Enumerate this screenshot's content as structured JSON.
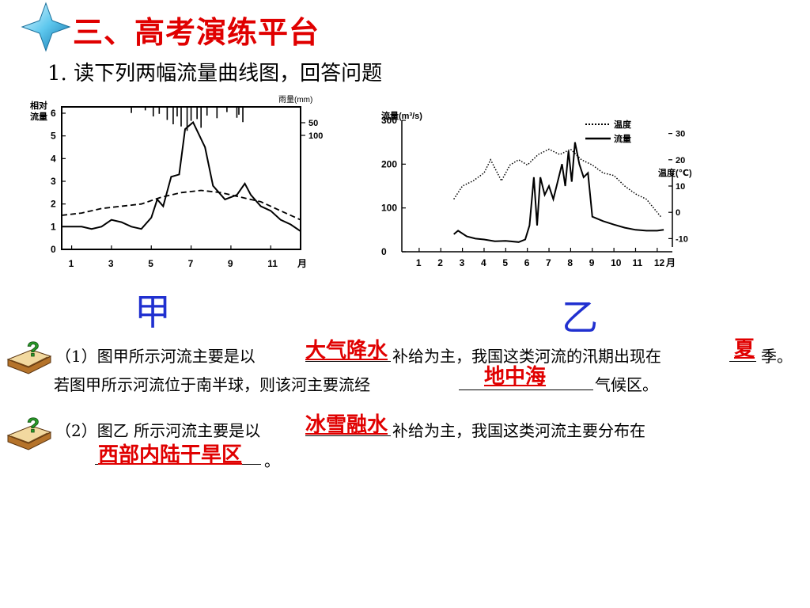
{
  "header": {
    "title": "三、高考演练平台",
    "subtitle": "1. 读下列两幅流量曲线图，回答问题"
  },
  "chart_labels": {
    "a": "甲",
    "b": "乙"
  },
  "questions": {
    "q1_line1_pre": "（1）图甲所示河流主要是以",
    "q1_line1_mid": "补给为主，我国这类河流的汛期出现在",
    "q1_line1_post": "季。",
    "q1_line2_pre": "若图甲所示河流位于南半球，则该河主要流经",
    "q1_line2_post": "气候区。",
    "q2_line1_pre": "（2）图乙 所示河流主要是以",
    "q2_line1_mid": "补给为主，我国这类河流主要分布在",
    "q2_line2_post": "。"
  },
  "answers": {
    "a1": "大气降水",
    "a2": "夏",
    "a3": "地中海",
    "a4": "冰雪融水",
    "a5": "西部内陆干旱区"
  },
  "colors": {
    "title": "#e00000",
    "answer": "#e00000",
    "chart_label": "#2030d0"
  },
  "chart_data": [
    {
      "type": "line",
      "ylabel": "相对流量",
      "y2label": "雨量(mm)",
      "x_unit": "月",
      "xticks": [
        "1",
        "3",
        "5",
        "7",
        "9",
        "11"
      ],
      "yticks": [
        "0",
        "1",
        "2",
        "3",
        "4",
        "5",
        "6"
      ],
      "y2ticks": [
        "50",
        "100"
      ],
      "ylim": [
        0,
        6
      ],
      "xlim": [
        0,
        12
      ],
      "series": [
        {
          "style": "solid",
          "points": [
            [
              0,
              1.0
            ],
            [
              1,
              1.0
            ],
            [
              1.5,
              0.9
            ],
            [
              2,
              1.0
            ],
            [
              2.5,
              1.3
            ],
            [
              3,
              1.2
            ],
            [
              3.5,
              1.0
            ],
            [
              4,
              0.9
            ],
            [
              4.5,
              1.4
            ],
            [
              4.8,
              2.2
            ],
            [
              5.1,
              1.9
            ],
            [
              5.5,
              3.2
            ],
            [
              5.9,
              3.3
            ],
            [
              6.2,
              5.3
            ],
            [
              6.6,
              5.6
            ],
            [
              7.2,
              4.5
            ],
            [
              7.6,
              2.8
            ],
            [
              8.2,
              2.2
            ],
            [
              8.8,
              2.4
            ],
            [
              9.2,
              2.9
            ],
            [
              9.5,
              2.4
            ],
            [
              10,
              1.9
            ],
            [
              10.5,
              1.7
            ],
            [
              11,
              1.3
            ],
            [
              11.5,
              1.1
            ],
            [
              12,
              0.8
            ]
          ]
        },
        {
          "style": "dashed",
          "points": [
            [
              0,
              1.5
            ],
            [
              1,
              1.6
            ],
            [
              2,
              1.8
            ],
            [
              3,
              1.9
            ],
            [
              4,
              2.0
            ],
            [
              5,
              2.3
            ],
            [
              6,
              2.5
            ],
            [
              7,
              2.6
            ],
            [
              8,
              2.5
            ],
            [
              9,
              2.3
            ],
            [
              10,
              2.1
            ],
            [
              11,
              1.7
            ],
            [
              12,
              1.3
            ]
          ]
        }
      ],
      "rain_bars": [
        [
          3.5,
          14
        ],
        [
          4.2,
          8
        ],
        [
          4.6,
          22
        ],
        [
          4.9,
          16
        ],
        [
          5.3,
          30
        ],
        [
          5.6,
          40
        ],
        [
          5.8,
          22
        ],
        [
          6.0,
          45
        ],
        [
          6.3,
          55
        ],
        [
          6.5,
          32
        ],
        [
          6.8,
          28
        ],
        [
          7.0,
          48
        ],
        [
          7.3,
          20
        ],
        [
          7.8,
          26
        ],
        [
          8.3,
          12
        ],
        [
          8.8,
          25
        ],
        [
          8.9,
          18
        ],
        [
          9.1,
          35
        ]
      ]
    },
    {
      "type": "line",
      "ylabel": "流量(m³/s)",
      "y2label": "温度(℃)",
      "x_unit": "月",
      "xticks": [
        "1",
        "2",
        "3",
        "4",
        "5",
        "6",
        "7",
        "8",
        "9",
        "10",
        "11",
        "12"
      ],
      "yticks": [
        "0",
        "100",
        "200",
        "300"
      ],
      "y2ticks": [
        "30",
        "20",
        "10",
        "0",
        "-10"
      ],
      "ylim": [
        0,
        300
      ],
      "y2lim": [
        -10,
        30
      ],
      "legend": [
        "温度",
        "流量"
      ],
      "series": [
        {
          "name": "温度",
          "style": "dotted",
          "temps": [
            [
              2.6,
              5
            ],
            [
              3,
              10
            ],
            [
              3.5,
              12
            ],
            [
              4,
              15
            ],
            [
              4.3,
              20
            ],
            [
              4.8,
              12
            ],
            [
              5.2,
              18
            ],
            [
              5.6,
              20
            ],
            [
              6,
              18
            ],
            [
              6.5,
              22
            ],
            [
              7,
              24
            ],
            [
              7.5,
              22
            ],
            [
              8,
              24
            ],
            [
              8.5,
              20
            ],
            [
              9,
              18
            ],
            [
              9.5,
              15
            ],
            [
              10,
              14
            ],
            [
              10.5,
              10
            ],
            [
              11,
              7
            ],
            [
              11.5,
              5
            ],
            [
              12,
              0
            ],
            [
              12.2,
              -2
            ]
          ]
        },
        {
          "name": "流量",
          "style": "solid",
          "flows": [
            [
              2.6,
              40
            ],
            [
              2.8,
              48
            ],
            [
              3.2,
              35
            ],
            [
              3.6,
              30
            ],
            [
              4,
              28
            ],
            [
              4.5,
              24
            ],
            [
              5,
              25
            ],
            [
              5.6,
              22
            ],
            [
              5.9,
              28
            ],
            [
              6.1,
              60
            ],
            [
              6.3,
              170
            ],
            [
              6.45,
              60
            ],
            [
              6.6,
              170
            ],
            [
              6.8,
              130
            ],
            [
              7,
              150
            ],
            [
              7.2,
              120
            ],
            [
              7.4,
              160
            ],
            [
              7.6,
              200
            ],
            [
              7.75,
              150
            ],
            [
              7.9,
              230
            ],
            [
              8.05,
              160
            ],
            [
              8.2,
              250
            ],
            [
              8.4,
              200
            ],
            [
              8.6,
              170
            ],
            [
              8.8,
              180
            ],
            [
              9,
              80
            ],
            [
              9.5,
              70
            ],
            [
              10,
              62
            ],
            [
              10.5,
              55
            ],
            [
              11,
              50
            ],
            [
              11.5,
              48
            ],
            [
              12,
              48
            ],
            [
              12.3,
              50
            ]
          ]
        }
      ]
    }
  ]
}
